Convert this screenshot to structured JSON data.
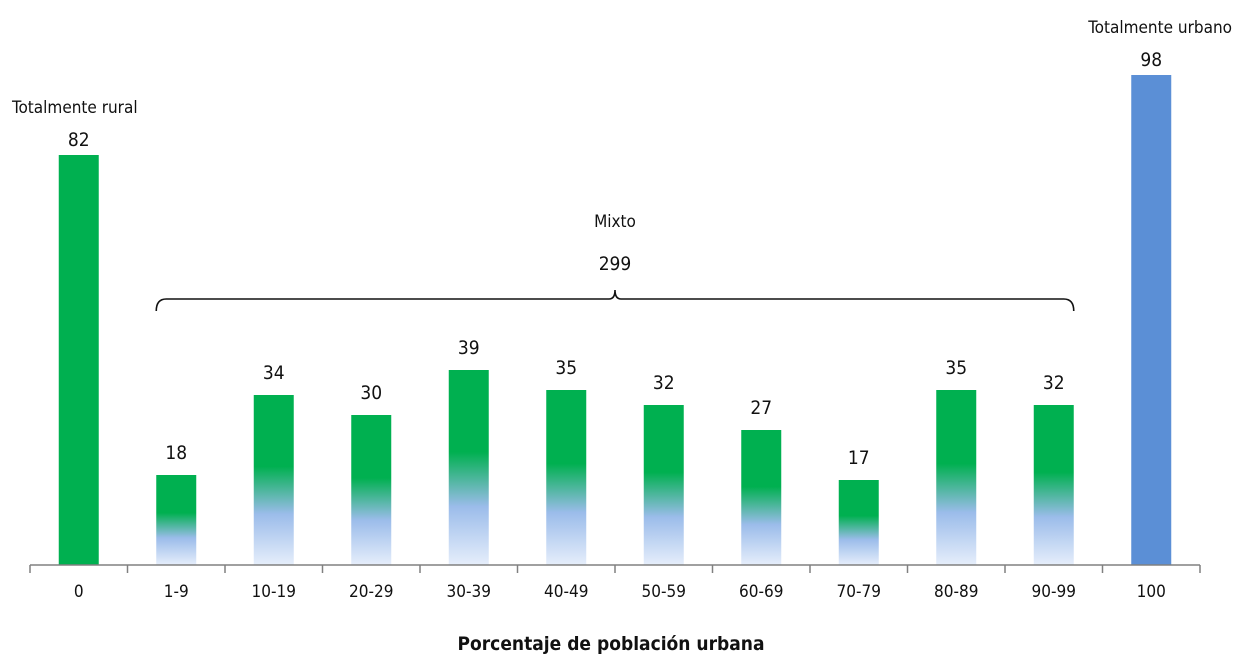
{
  "chart_data": {
    "type": "bar",
    "title": "",
    "xlabel": "Porcentaje de población urbana",
    "ylabel": "",
    "ylim": [
      0,
      100
    ],
    "grid": false,
    "categories": [
      "0",
      "1-9",
      "10-19",
      "20-29",
      "30-39",
      "40-49",
      "50-59",
      "60-69",
      "70-79",
      "80-89",
      "90-99",
      "100"
    ],
    "values": [
      82,
      18,
      34,
      30,
      39,
      35,
      32,
      27,
      17,
      35,
      32,
      98
    ],
    "annotations": {
      "rural": {
        "label": "Totalmente rural",
        "value": "82"
      },
      "urban": {
        "label": "Totalmente urbano",
        "value": "98"
      },
      "mixed": {
        "label": "Mixto",
        "value": "299",
        "from": "1-9",
        "to": "90-99"
      }
    }
  },
  "colors": {
    "rural": "#00b050",
    "mixed_top": "#00b050",
    "mixed_bottom": "#e6eefb",
    "urban": "#5b8fd6",
    "axis": "#808080"
  }
}
